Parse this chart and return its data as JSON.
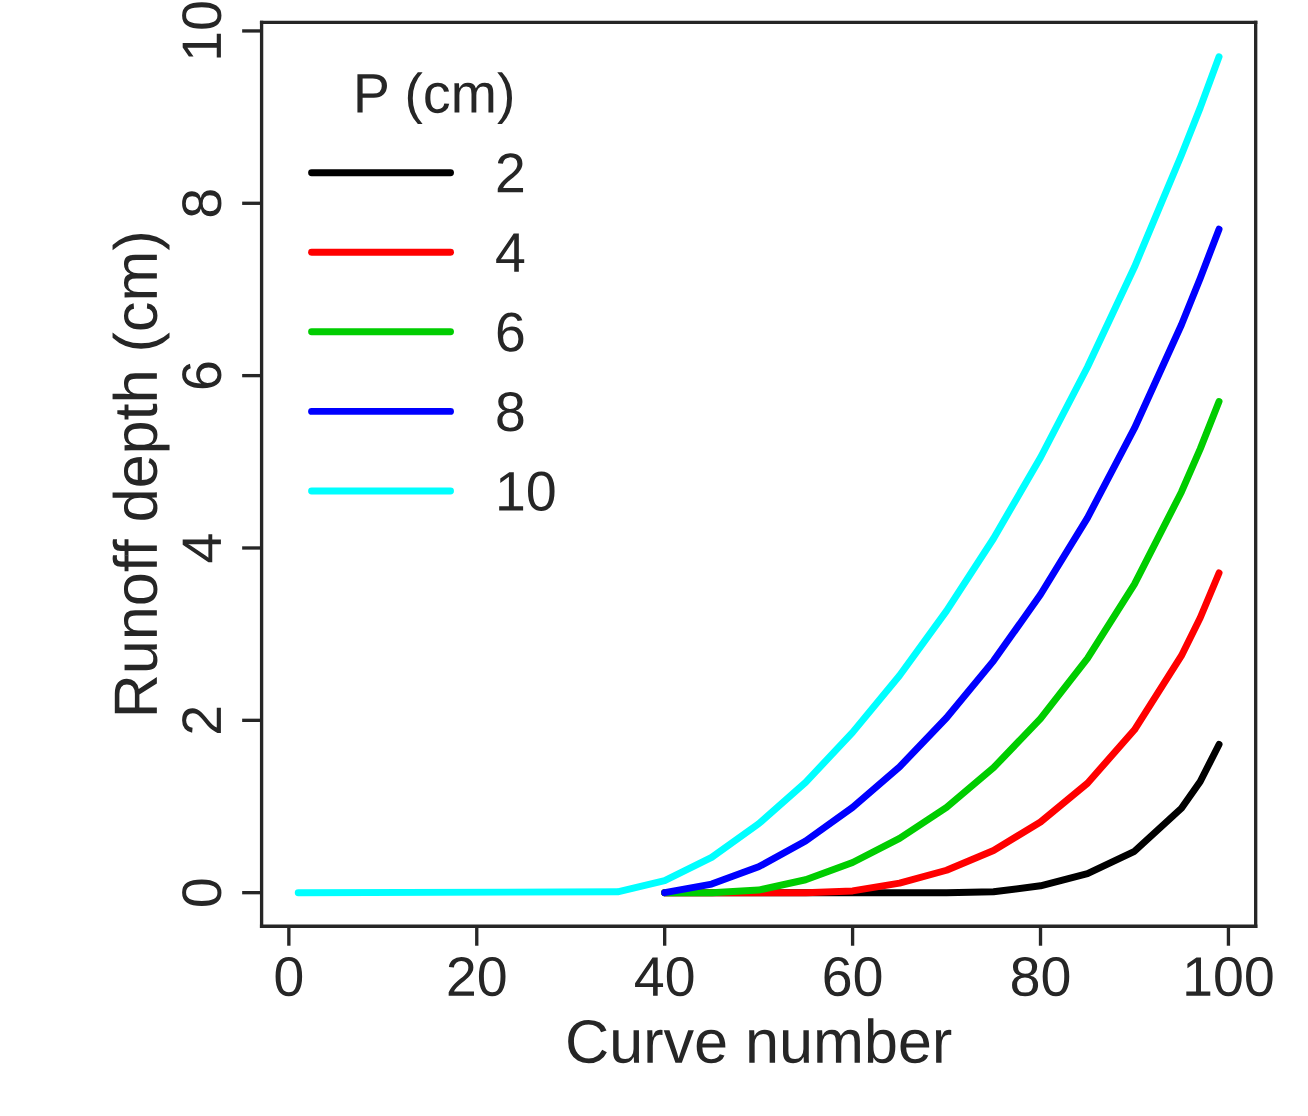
{
  "chart_data": {
    "type": "line",
    "xlabel": "Curve number",
    "ylabel": "Runoff depth (cm)",
    "legend_title": "P (cm)",
    "legend": "top left",
    "grid": false,
    "marker": "none",
    "line_style": "solid",
    "x": [
      1,
      35,
      40,
      45,
      50,
      55,
      60,
      65,
      70,
      75,
      80,
      85,
      90,
      95,
      97,
      99
    ],
    "xlim": [
      -2.9,
      102.9
    ],
    "xticks": [
      0,
      20,
      40,
      60,
      80,
      100
    ],
    "ylim": [
      -0.39,
      10.1
    ],
    "yticks": [
      0,
      2,
      4,
      6,
      8,
      10
    ],
    "series": [
      {
        "name": "2",
        "color": "#000000",
        "values": [
          null,
          null,
          0,
          0,
          0,
          0,
          0,
          0,
          0,
          0.01,
          0.08,
          0.22,
          0.48,
          0.98,
          1.29,
          1.72
        ]
      },
      {
        "name": "4",
        "color": "#ff0000",
        "values": [
          null,
          null,
          0,
          0,
          0,
          0,
          0.02,
          0.11,
          0.26,
          0.49,
          0.82,
          1.27,
          1.89,
          2.75,
          3.19,
          3.71
        ]
      },
      {
        "name": "6",
        "color": "#00cd00",
        "values": [
          null,
          null,
          0,
          0,
          0.03,
          0.15,
          0.35,
          0.63,
          0.99,
          1.45,
          2.02,
          2.72,
          3.58,
          4.65,
          5.15,
          5.7
        ]
      },
      {
        "name": "8",
        "color": "#0000ff",
        "values": [
          null,
          null,
          0,
          0.1,
          0.3,
          0.6,
          0.99,
          1.46,
          2.03,
          2.69,
          3.46,
          4.35,
          5.39,
          6.59,
          7.13,
          7.7
        ]
      },
      {
        "name": "10",
        "color": "#00ffff",
        "values": [
          0,
          0.01,
          0.14,
          0.41,
          0.8,
          1.28,
          1.86,
          2.52,
          3.27,
          4.11,
          5.05,
          6.1,
          7.26,
          8.56,
          9.11,
          9.7
        ]
      }
    ]
  }
}
